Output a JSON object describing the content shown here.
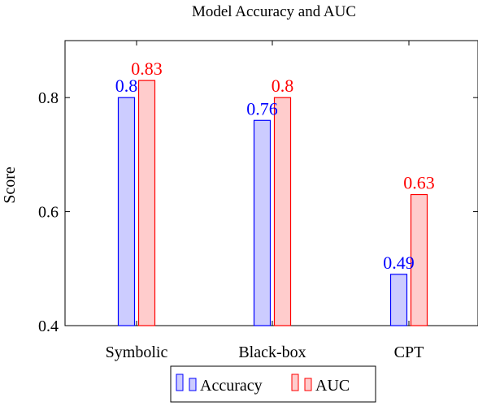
{
  "chart_data": {
    "type": "bar",
    "title": "Model Accuracy and AUC",
    "xlabel": "",
    "ylabel": "Score",
    "categories": [
      "Symbolic",
      "Black-box",
      "CPT"
    ],
    "series": [
      {
        "name": "Accuracy",
        "values": [
          0.8,
          0.76,
          0.49
        ],
        "labels": [
          "0.8",
          "0.76",
          "0.49"
        ],
        "stroke": "#0000ff",
        "fill": "#ccccff"
      },
      {
        "name": "AUC",
        "values": [
          0.83,
          0.8,
          0.63
        ],
        "labels": [
          "0.83",
          "0.8",
          "0.63"
        ],
        "stroke": "#ff0000",
        "fill": "#ffcccc"
      }
    ],
    "ylim": [
      0.4,
      0.9
    ],
    "yticks": [
      0.4,
      0.6,
      0.8
    ],
    "ytick_labels": [
      "0.4",
      "0.6",
      "0.8"
    ],
    "grid": false,
    "legend": "bottom-center"
  }
}
